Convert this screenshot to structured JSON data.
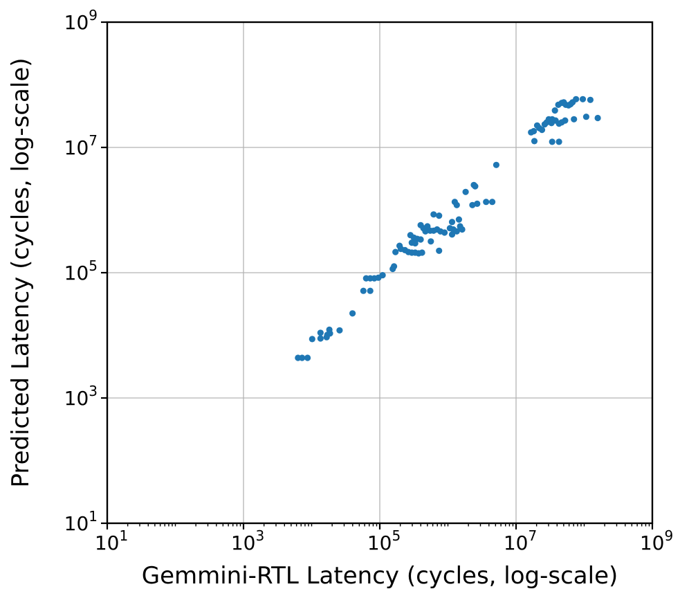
{
  "chart_data": {
    "type": "scatter",
    "title": "",
    "xlabel": "Gemmini-RTL Latency (cycles, log-scale)",
    "ylabel": "Predicted Latency (cycles, log-scale)",
    "xscale": "log",
    "yscale": "log",
    "xlim": [
      10,
      1000000000
    ],
    "ylim": [
      10,
      1000000000
    ],
    "grid": true,
    "legend": "none",
    "axes": {
      "x": {
        "tick_exponents": [
          1,
          3,
          5,
          7,
          9
        ],
        "grid_exponents": [
          3,
          5,
          7
        ],
        "minor_ticks": true
      },
      "y": {
        "tick_exponents": [
          1,
          3,
          5,
          7,
          9
        ],
        "grid_exponents": [
          3,
          5,
          7
        ],
        "minor_ticks": false
      }
    },
    "style": {
      "marker_color": "#1f77b4",
      "marker_radius_px": 4.6,
      "grid_color": "#b3b3b3",
      "spine_color": "#000000",
      "tick_base": "10"
    },
    "points": [
      [
        6310,
        4370
      ],
      [
        7240,
        4370
      ],
      [
        8710,
        4370
      ],
      [
        10200,
        8710
      ],
      [
        13500,
        11000
      ],
      [
        13500,
        8910
      ],
      [
        16600,
        9330
      ],
      [
        17000,
        10200
      ],
      [
        18200,
        12300
      ],
      [
        18600,
        10700
      ],
      [
        25700,
        12000
      ],
      [
        39800,
        22400
      ],
      [
        57500,
        51300
      ],
      [
        72400,
        51300
      ],
      [
        63100,
        81300
      ],
      [
        72400,
        81300
      ],
      [
        83200,
        81300
      ],
      [
        95500,
        83200
      ],
      [
        110000,
        91200
      ],
      [
        155000,
        115000
      ],
      [
        162000,
        126000
      ],
      [
        170000,
        214000
      ],
      [
        195000,
        269000
      ],
      [
        204000,
        240000
      ],
      [
        234000,
        229000
      ],
      [
        263000,
        214000
      ],
      [
        295000,
        209000
      ],
      [
        331000,
        209000
      ],
      [
        372000,
        204000
      ],
      [
        417000,
        209000
      ],
      [
        282000,
        398000
      ],
      [
        316000,
        363000
      ],
      [
        355000,
        347000
      ],
      [
        398000,
        339000
      ],
      [
        295000,
        302000
      ],
      [
        331000,
        295000
      ],
      [
        398000,
        575000
      ],
      [
        437000,
        513000
      ],
      [
        468000,
        457000
      ],
      [
        501000,
        550000
      ],
      [
        550000,
        468000
      ],
      [
        617000,
        468000
      ],
      [
        692000,
        490000
      ],
      [
        776000,
        457000
      ],
      [
        891000,
        437000
      ],
      [
        562000,
        316000
      ],
      [
        741000,
        224000
      ],
      [
        617000,
        851000
      ],
      [
        741000,
        813000
      ],
      [
        1070000,
        513000
      ],
      [
        1150000,
        407000
      ],
      [
        1200000,
        490000
      ],
      [
        1350000,
        457000
      ],
      [
        1450000,
        708000
      ],
      [
        1510000,
        550000
      ],
      [
        1620000,
        490000
      ],
      [
        1150000,
        646000
      ],
      [
        1260000,
        1350000
      ],
      [
        1350000,
        1200000
      ],
      [
        1820000,
        1950000
      ],
      [
        2290000,
        1200000
      ],
      [
        2400000,
        2510000
      ],
      [
        2690000,
        1260000
      ],
      [
        2510000,
        2400000
      ],
      [
        3630000,
        1350000
      ],
      [
        4470000,
        1350000
      ],
      [
        5130000,
        5250000
      ],
      [
        16600000,
        17400000
      ],
      [
        18200000,
        18200000
      ],
      [
        18600000,
        12600000
      ],
      [
        20400000,
        22400000
      ],
      [
        21900000,
        20400000
      ],
      [
        24000000,
        19100000
      ],
      [
        26300000,
        23400000
      ],
      [
        28200000,
        25100000
      ],
      [
        30200000,
        28200000
      ],
      [
        33100000,
        24500000
      ],
      [
        33900000,
        28200000
      ],
      [
        38000000,
        26900000
      ],
      [
        42700000,
        24000000
      ],
      [
        46800000,
        25100000
      ],
      [
        52500000,
        26900000
      ],
      [
        33900000,
        12300000
      ],
      [
        42700000,
        12300000
      ],
      [
        37200000,
        38900000
      ],
      [
        41700000,
        47900000
      ],
      [
        46800000,
        51300000
      ],
      [
        50100000,
        52500000
      ],
      [
        53700000,
        47900000
      ],
      [
        58900000,
        46800000
      ],
      [
        63100000,
        49000000
      ],
      [
        67600000,
        52500000
      ],
      [
        75900000,
        58900000
      ],
      [
        95500000,
        58900000
      ],
      [
        123000000,
        57500000
      ],
      [
        70800000,
        28200000
      ],
      [
        107000000,
        30900000
      ],
      [
        158000000,
        29500000
      ]
    ]
  }
}
